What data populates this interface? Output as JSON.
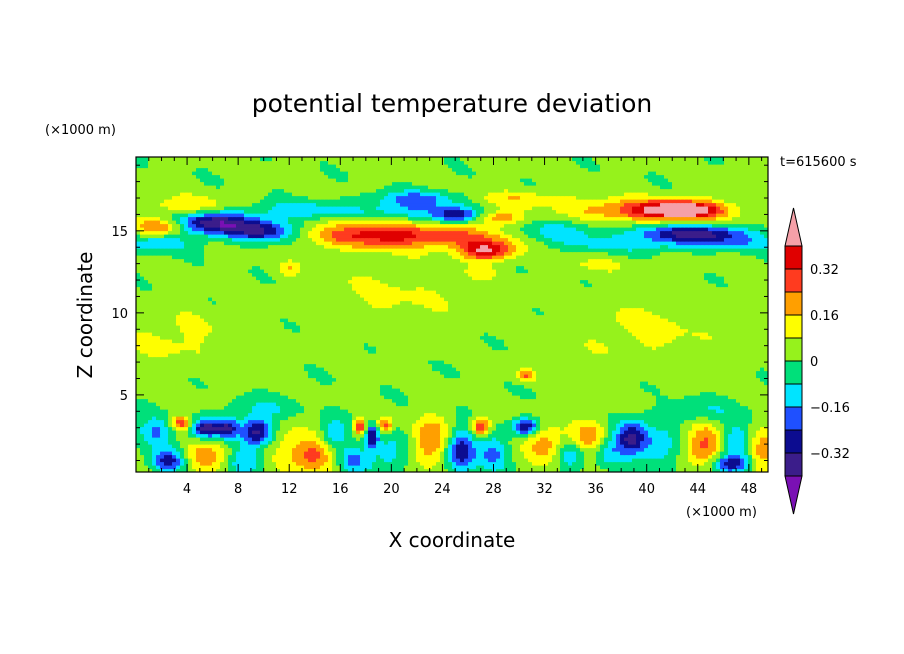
{
  "chart_data": {
    "type": "heatmap",
    "title": "potential temperature deviation",
    "xlabel": "X coordinate",
    "ylabel": "Z coordinate",
    "x_unit": "(×1000 m)",
    "y_unit": "(×1000 m)",
    "time_label": "t=615600 s",
    "xlim": [
      0,
      49.5
    ],
    "ylim": [
      0.3,
      19.5
    ],
    "x_ticks": [
      4,
      8,
      12,
      16,
      20,
      24,
      28,
      32,
      36,
      40,
      44,
      48
    ],
    "y_ticks": [
      5,
      10,
      15
    ],
    "colorbar": {
      "levels": [
        -0.4,
        -0.32,
        -0.24,
        -0.16,
        -0.08,
        0,
        0.08,
        0.16,
        0.24,
        0.32,
        0.4
      ],
      "labels": [
        "0.32",
        "0.16",
        "0",
        "−0.16",
        "−0.32"
      ],
      "label_values": [
        0.32,
        0.16,
        0,
        -0.16,
        -0.32
      ],
      "colors": [
        "#3b1d8a",
        "#0c0c90",
        "#1f50ff",
        "#00e4ff",
        "#00e07a",
        "#96f21c",
        "#fefe00",
        "#ff9f00",
        "#ff3b1f",
        "#e00000"
      ],
      "over_color": "#f5a0a8",
      "under_color": "#7a10b4"
    },
    "background_value": 0.02,
    "features": [
      {
        "x": 6,
        "z": 15.5,
        "sx": 2.4,
        "sz": 0.5,
        "v": -0.4
      },
      {
        "x": 10,
        "z": 15.0,
        "sx": 1.8,
        "sz": 0.45,
        "v": -0.3
      },
      {
        "x": 2,
        "z": 15.3,
        "sx": 1.4,
        "sz": 0.35,
        "v": 0.28
      },
      {
        "x": 1.5,
        "z": 14.2,
        "sx": 2,
        "sz": 0.35,
        "v": -0.16
      },
      {
        "x": 4,
        "z": 16.5,
        "sx": 2.5,
        "sz": 0.45,
        "v": 0.14
      },
      {
        "x": 13,
        "z": 16.3,
        "sx": 2.8,
        "sz": 0.4,
        "v": -0.15
      },
      {
        "x": 19,
        "z": 14.8,
        "sx": 3.5,
        "sz": 0.55,
        "v": 0.34
      },
      {
        "x": 21,
        "z": 16.2,
        "sx": 2.5,
        "sz": 0.45,
        "v": -0.15
      },
      {
        "x": 22,
        "z": 17.0,
        "sx": 2.2,
        "sz": 0.35,
        "v": -0.2
      },
      {
        "x": 25,
        "z": 16.0,
        "sx": 1.2,
        "sz": 0.35,
        "v": -0.3
      },
      {
        "x": 27.5,
        "z": 13.8,
        "sx": 1.5,
        "sz": 0.4,
        "v": 0.36
      },
      {
        "x": 26,
        "z": 14.6,
        "sx": 3,
        "sz": 0.5,
        "v": 0.18
      },
      {
        "x": 28.5,
        "z": 15.8,
        "sx": 1.2,
        "sz": 0.3,
        "v": 0.2
      },
      {
        "x": 30,
        "z": 17.0,
        "sx": 2.5,
        "sz": 0.35,
        "v": 0.12
      },
      {
        "x": 33,
        "z": 15.0,
        "sx": 2.5,
        "sz": 0.5,
        "v": -0.14
      },
      {
        "x": 40,
        "z": 16.3,
        "sx": 4,
        "sz": 0.5,
        "v": 0.28
      },
      {
        "x": 43,
        "z": 16.3,
        "sx": 2,
        "sz": 0.35,
        "v": 0.36
      },
      {
        "x": 43.5,
        "z": 14.9,
        "sx": 3,
        "sz": 0.35,
        "v": -0.36
      },
      {
        "x": 46,
        "z": 14.3,
        "sx": 3.5,
        "sz": 0.35,
        "v": -0.16
      },
      {
        "x": 38,
        "z": 14.2,
        "sx": 3,
        "sz": 0.35,
        "v": -0.12
      },
      {
        "x": 12,
        "z": 12.7,
        "sx": 0.6,
        "sz": 0.3,
        "v": 0.12
      },
      {
        "x": 27,
        "z": 12.5,
        "sx": 1,
        "sz": 0.3,
        "v": 0.08
      },
      {
        "x": 36,
        "z": 13.0,
        "sx": 2,
        "sz": 0.35,
        "v": 0.07
      },
      {
        "x": 30.5,
        "z": 6.2,
        "sx": 0.5,
        "sz": 0.25,
        "v": 0.22
      },
      {
        "x": 3,
        "z": 8.5,
        "sx": 3,
        "sz": 1.2,
        "v": 0.08
      },
      {
        "x": 40,
        "z": 9,
        "sx": 4,
        "sz": 1.5,
        "v": 0.08
      },
      {
        "x": 20,
        "z": 11,
        "sx": 4,
        "sz": 1.5,
        "v": 0.07
      },
      {
        "x": 1.5,
        "z": 2.8,
        "sx": 1,
        "sz": 0.6,
        "v": -0.2
      },
      {
        "x": 3.5,
        "z": 3.3,
        "sx": 0.5,
        "sz": 0.3,
        "v": 0.3
      },
      {
        "x": 5.5,
        "z": 3.0,
        "sx": 0.8,
        "sz": 0.4,
        "v": -0.38
      },
      {
        "x": 7.2,
        "z": 3.0,
        "sx": 0.6,
        "sz": 0.4,
        "v": -0.3
      },
      {
        "x": 9.5,
        "z": 2.8,
        "sx": 0.9,
        "sz": 0.6,
        "v": -0.38
      },
      {
        "x": 12,
        "z": 2.0,
        "sx": 1.5,
        "sz": 1.0,
        "v": 0.1
      },
      {
        "x": 2.5,
        "z": 1.0,
        "sx": 0.9,
        "sz": 0.5,
        "v": -0.3
      },
      {
        "x": 5.5,
        "z": 1.2,
        "sx": 1.2,
        "sz": 0.6,
        "v": 0.2
      },
      {
        "x": 8.5,
        "z": 1.0,
        "sx": 1,
        "sz": 0.6,
        "v": -0.18
      },
      {
        "x": 14,
        "z": 1.3,
        "sx": 1.2,
        "sz": 0.7,
        "v": 0.24
      },
      {
        "x": 15.5,
        "z": 2.5,
        "sx": 0.8,
        "sz": 0.8,
        "v": -0.18
      },
      {
        "x": 17,
        "z": 1.0,
        "sx": 0.8,
        "sz": 0.6,
        "v": -0.2
      },
      {
        "x": 17.5,
        "z": 3.1,
        "sx": 0.35,
        "sz": 0.35,
        "v": 0.36
      },
      {
        "x": 18.5,
        "z": 2.5,
        "sx": 0.35,
        "sz": 0.5,
        "v": -0.32
      },
      {
        "x": 19.5,
        "z": 3.2,
        "sx": 0.4,
        "sz": 0.3,
        "v": 0.26
      },
      {
        "x": 20,
        "z": 1.5,
        "sx": 1.2,
        "sz": 0.9,
        "v": -0.14
      },
      {
        "x": 23,
        "z": 2.2,
        "sx": 1,
        "sz": 1.0,
        "v": 0.24
      },
      {
        "x": 25.5,
        "z": 1.6,
        "sx": 0.8,
        "sz": 0.9,
        "v": -0.34
      },
      {
        "x": 27,
        "z": 3.1,
        "sx": 0.5,
        "sz": 0.4,
        "v": 0.34
      },
      {
        "x": 28,
        "z": 1.5,
        "sx": 0.8,
        "sz": 0.8,
        "v": -0.2
      },
      {
        "x": 30.5,
        "z": 3.1,
        "sx": 0.7,
        "sz": 0.35,
        "v": -0.36
      },
      {
        "x": 32,
        "z": 2.0,
        "sx": 1,
        "sz": 0.8,
        "v": 0.2
      },
      {
        "x": 34,
        "z": 1.3,
        "sx": 0.8,
        "sz": 0.6,
        "v": -0.16
      },
      {
        "x": 35.5,
        "z": 2.5,
        "sx": 0.9,
        "sz": 0.7,
        "v": 0.2
      },
      {
        "x": 37,
        "z": 1.5,
        "sx": 0.8,
        "sz": 0.7,
        "v": -0.12
      },
      {
        "x": 38.8,
        "z": 2.4,
        "sx": 0.9,
        "sz": 0.7,
        "v": -0.38
      },
      {
        "x": 41,
        "z": 1.8,
        "sx": 1,
        "sz": 0.8,
        "v": -0.16
      },
      {
        "x": 44.5,
        "z": 2.0,
        "sx": 1,
        "sz": 0.9,
        "v": 0.24
      },
      {
        "x": 46.5,
        "z": 0.8,
        "sx": 1,
        "sz": 0.4,
        "v": -0.34
      },
      {
        "x": 47,
        "z": 2.3,
        "sx": 0.8,
        "sz": 0.8,
        "v": -0.16
      },
      {
        "x": 49,
        "z": 1.5,
        "sx": 0.7,
        "sz": 0.9,
        "v": 0.2
      },
      {
        "x": 44,
        "z": 4.0,
        "sx": 2,
        "sz": 0.5,
        "v": -0.12
      },
      {
        "x": 10,
        "z": 4.2,
        "sx": 2,
        "sz": 0.5,
        "v": -0.1
      }
    ]
  }
}
